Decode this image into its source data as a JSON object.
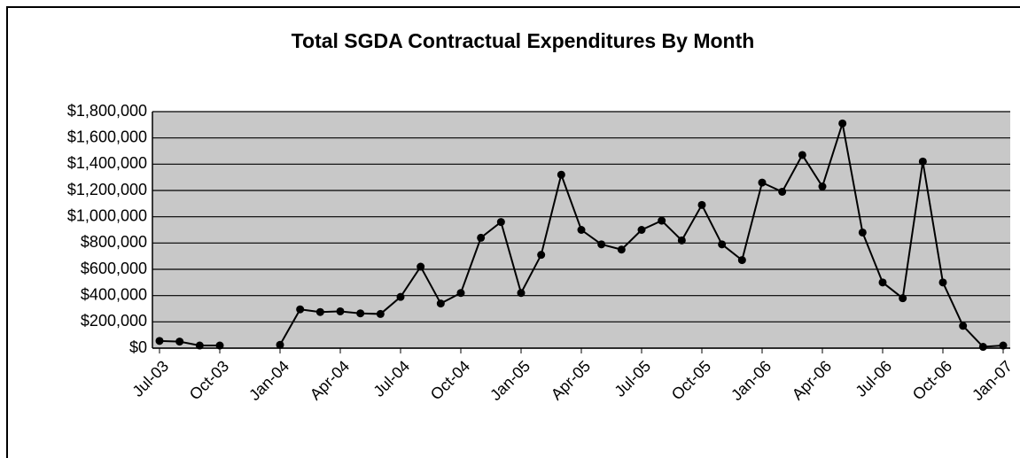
{
  "chart_data": {
    "type": "line",
    "title": "Total SGDA Contractual Expenditures By Month",
    "categories": [
      "Jul-03",
      null,
      null,
      "Oct-03",
      null,
      null,
      "Jan-04",
      null,
      null,
      "Apr-04",
      null,
      null,
      "Jul-04",
      null,
      null,
      "Oct-04",
      null,
      null,
      "Jan-05",
      null,
      null,
      "Apr-05",
      null,
      null,
      "Jul-05",
      null,
      null,
      "Oct-05",
      null,
      null,
      "Jan-06",
      null,
      null,
      "Apr-06",
      null,
      null,
      "Jul-06",
      null,
      null,
      "Oct-06",
      null,
      null,
      "Jan-07"
    ],
    "series": [
      {
        "name": "Expenditures",
        "color": "#000000",
        "values": [
          55000,
          50000,
          20000,
          20000,
          null,
          null,
          25000,
          295000,
          275000,
          280000,
          265000,
          260000,
          390000,
          620000,
          340000,
          420000,
          840000,
          960000,
          420000,
          710000,
          1320000,
          900000,
          790000,
          750000,
          900000,
          970000,
          820000,
          1090000,
          790000,
          670000,
          1260000,
          1190000,
          1470000,
          1230000,
          1710000,
          880000,
          500000,
          380000,
          1420000,
          500000,
          170000,
          10000,
          20000
        ]
      }
    ],
    "ylim": [
      0,
      1800000
    ],
    "yticks": [
      {
        "value": 0,
        "label": "$0"
      },
      {
        "value": 200000,
        "label": "$200,000"
      },
      {
        "value": 400000,
        "label": "$400,000"
      },
      {
        "value": 600000,
        "label": "$600,000"
      },
      {
        "value": 800000,
        "label": "$800,000"
      },
      {
        "value": 1000000,
        "label": "$1,000,000"
      },
      {
        "value": 1200000,
        "label": "$1,200,000"
      },
      {
        "value": 1400000,
        "label": "$1,400,000"
      },
      {
        "value": 1600000,
        "label": "$1,600,000"
      },
      {
        "value": 1800000,
        "label": "$1,800,000"
      }
    ],
    "grid": true
  }
}
